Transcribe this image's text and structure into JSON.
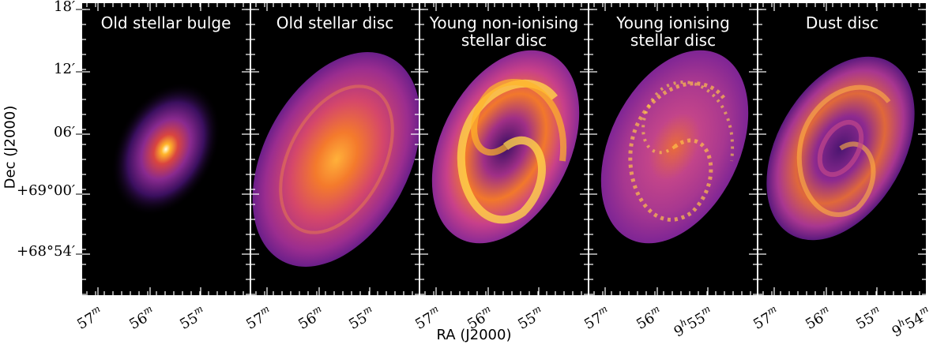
{
  "panels": [
    {
      "title_line1": "Old stellar bulge",
      "title_line2": ""
    },
    {
      "title_line1": "Old stellar disc",
      "title_line2": ""
    },
    {
      "title_line1": "Young non-ionising",
      "title_line2": "stellar disc"
    },
    {
      "title_line1": "Young ionising",
      "title_line2": "stellar disc"
    },
    {
      "title_line1": "Dust disc",
      "title_line2": ""
    }
  ],
  "axes": {
    "ylabel": "Dec (J2000)",
    "xlabel": "RA (J2000)",
    "yticks": [
      {
        "value": "18",
        "prime": "′"
      },
      {
        "value": "12",
        "prime": "′"
      },
      {
        "value": "06",
        "prime": "′"
      },
      {
        "value": "+69°00",
        "prime": "′"
      },
      {
        "value": "+68°54",
        "prime": "′"
      }
    ],
    "xticks": [
      {
        "main": "57",
        "sup": "m",
        "prefix": "",
        "presup": ""
      },
      {
        "main": "56",
        "sup": "m",
        "prefix": "",
        "presup": ""
      },
      {
        "main": "55",
        "sup": "m",
        "prefix": "",
        "presup": ""
      },
      {
        "main": "57",
        "sup": "m",
        "prefix": "",
        "presup": ""
      },
      {
        "main": "56",
        "sup": "m",
        "prefix": "",
        "presup": ""
      },
      {
        "main": "55",
        "sup": "m",
        "prefix": "",
        "presup": ""
      },
      {
        "main": "57",
        "sup": "m",
        "prefix": "",
        "presup": ""
      },
      {
        "main": "56",
        "sup": "m",
        "prefix": "",
        "presup": ""
      },
      {
        "main": "55",
        "sup": "m",
        "prefix": "",
        "presup": ""
      },
      {
        "main": "57",
        "sup": "m",
        "prefix": "",
        "presup": ""
      },
      {
        "main": "56",
        "sup": "m",
        "prefix": "",
        "presup": ""
      },
      {
        "main": "55",
        "sup": "m",
        "prefix": "9",
        "presup": "h"
      },
      {
        "main": "57",
        "sup": "m",
        "prefix": "",
        "presup": ""
      },
      {
        "main": "56",
        "sup": "m",
        "prefix": "",
        "presup": ""
      },
      {
        "main": "55",
        "sup": "m",
        "prefix": "",
        "presup": ""
      },
      {
        "main": "54",
        "sup": "m",
        "prefix": "9",
        "presup": "h"
      }
    ]
  },
  "colormap": "inferno"
}
